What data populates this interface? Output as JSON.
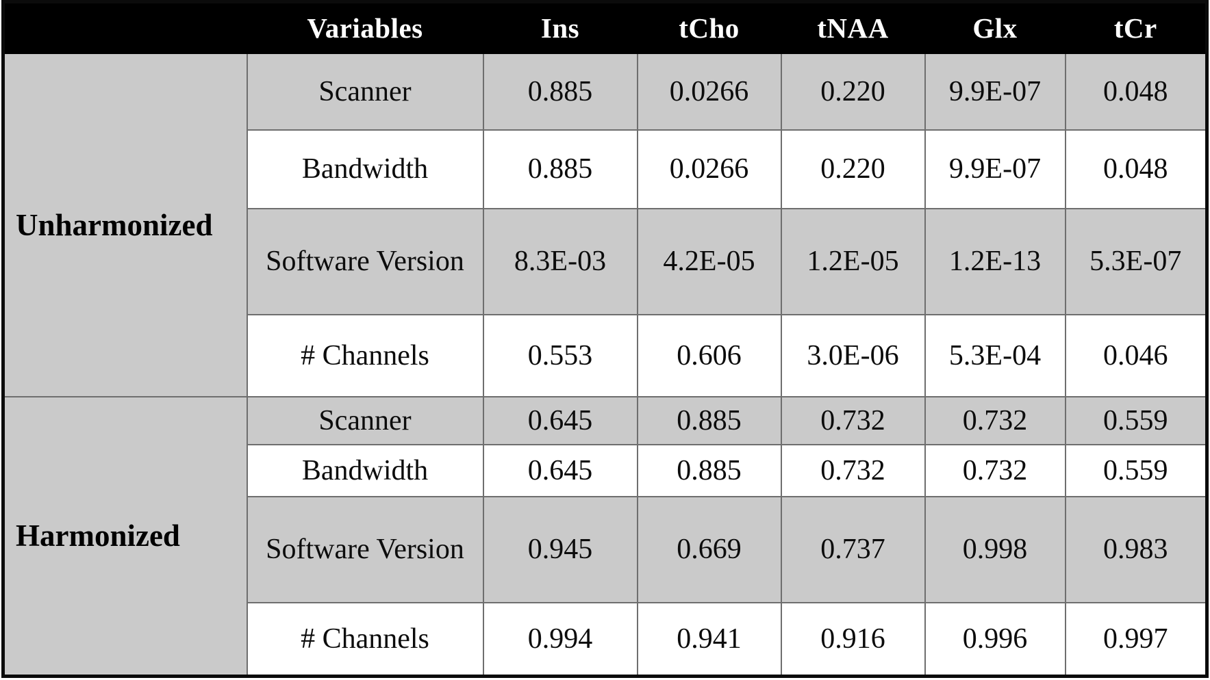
{
  "table": {
    "header": {
      "corner": "",
      "variables_label": "Variables",
      "metabolites": [
        "Ins",
        "tCho",
        "tNAA",
        "Glx",
        "tCr"
      ]
    },
    "groups": [
      {
        "label": "Unharmonized",
        "rows": [
          {
            "variable": "Scanner",
            "values": [
              "0.885",
              "0.0266",
              "0.220",
              "9.9E-07",
              "0.048"
            ]
          },
          {
            "variable": "Bandwidth",
            "values": [
              "0.885",
              "0.0266",
              "0.220",
              "9.9E-07",
              "0.048"
            ]
          },
          {
            "variable": "Software Version",
            "values": [
              "8.3E-03",
              "4.2E-05",
              "1.2E-05",
              "1.2E-13",
              "5.3E-07"
            ]
          },
          {
            "variable": "# Channels",
            "values": [
              "0.553",
              "0.606",
              "3.0E-06",
              "5.3E-04",
              "0.046"
            ]
          }
        ]
      },
      {
        "label": "Harmonized",
        "rows": [
          {
            "variable": "Scanner",
            "values": [
              "0.645",
              "0.885",
              "0.732",
              "0.732",
              "0.559"
            ]
          },
          {
            "variable": "Bandwidth",
            "values": [
              "0.645",
              "0.885",
              "0.732",
              "0.732",
              "0.559"
            ]
          },
          {
            "variable": "Software Version",
            "values": [
              "0.945",
              "0.669",
              "0.737",
              "0.998",
              "0.983"
            ]
          },
          {
            "variable": "# Channels",
            "values": [
              "0.994",
              "0.941",
              "0.916",
              "0.996",
              "0.997"
            ]
          }
        ]
      }
    ]
  },
  "colors": {
    "header_background": "#000000",
    "header_text": "#ffffff",
    "shaded_row": "#cacaca",
    "unshaded_row": "#ffffff",
    "grid_line": "#6e6e6e",
    "outer_border": "#0b0b0b",
    "body_text": "#0c0c0c"
  },
  "chart_data": {
    "type": "table",
    "title": "",
    "columns": [
      "",
      "Variables",
      "Ins",
      "tCho",
      "tNAA",
      "Glx",
      "tCr"
    ],
    "rows": [
      [
        "Unharmonized",
        "Scanner",
        "0.885",
        "0.0266",
        "0.220",
        "9.9E-07",
        "0.048"
      ],
      [
        "Unharmonized",
        "Bandwidth",
        "0.885",
        "0.0266",
        "0.220",
        "9.9E-07",
        "0.048"
      ],
      [
        "Unharmonized",
        "Software Version",
        "8.3E-03",
        "4.2E-05",
        "1.2E-05",
        "1.2E-13",
        "5.3E-07"
      ],
      [
        "Unharmonized",
        "# Channels",
        "0.553",
        "0.606",
        "3.0E-06",
        "5.3E-04",
        "0.046"
      ],
      [
        "Harmonized",
        "Scanner",
        "0.645",
        "0.885",
        "0.732",
        "0.732",
        "0.559"
      ],
      [
        "Harmonized",
        "Bandwidth",
        "0.645",
        "0.885",
        "0.732",
        "0.732",
        "0.559"
      ],
      [
        "Harmonized",
        "Software Version",
        "0.945",
        "0.669",
        "0.737",
        "0.998",
        "0.983"
      ],
      [
        "Harmonized",
        "# Channels",
        "0.994",
        "0.941",
        "0.916",
        "0.996",
        "0.997"
      ]
    ]
  }
}
